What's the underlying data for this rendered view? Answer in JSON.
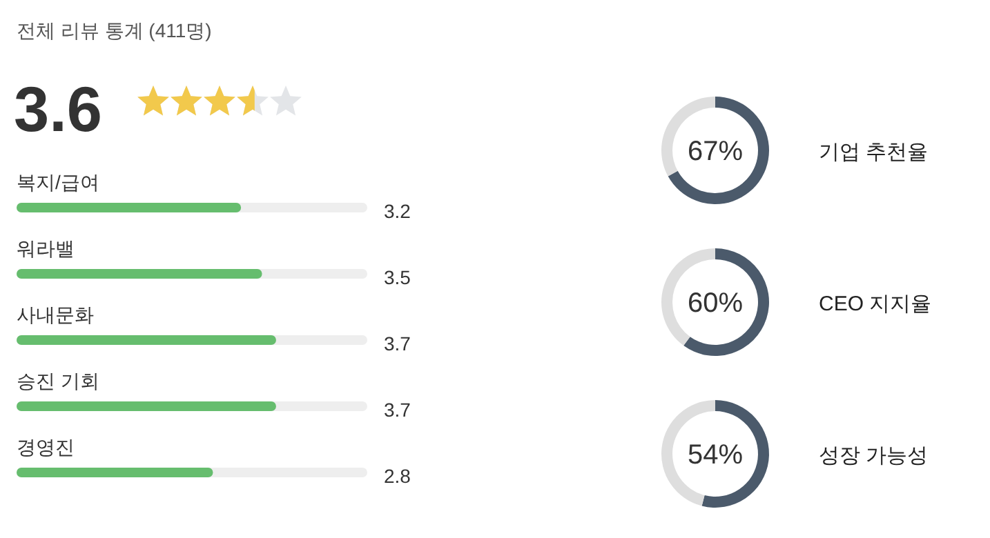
{
  "chart_data": [
    {
      "type": "other",
      "title": "전체 리뷰 통계 (411명)",
      "annotations": [
        "3.6"
      ]
    },
    {
      "type": "bar",
      "orientation": "horizontal",
      "categories": [
        "복지/급여",
        "워라밸",
        "사내문화",
        "승진 기회",
        "경영진"
      ],
      "values": [
        3.2,
        3.5,
        3.7,
        3.7,
        2.8
      ],
      "color": "#66bd6e",
      "xlim": [
        0,
        5
      ],
      "data_labels": true
    },
    {
      "type": "donut",
      "title": "기업 추천율",
      "categories": [
        null,
        null
      ],
      "values": [
        67,
        33
      ],
      "colors": [
        "#4b5a6b",
        "#dedede"
      ],
      "value_labels": [
        "67%",
        null
      ]
    },
    {
      "type": "donut",
      "title": "CEO 지지율",
      "categories": [
        null,
        null
      ],
      "values": [
        60,
        40
      ],
      "colors": [
        "#4b5a6b",
        "#dedede"
      ],
      "value_labels": [
        "60%",
        null
      ]
    },
    {
      "type": "donut",
      "title": "성장 가능성",
      "categories": [
        null,
        null
      ],
      "values": [
        54,
        46
      ],
      "colors": [
        "#4b5a6b",
        "#dedede"
      ],
      "value_labels": [
        "54%",
        null
      ]
    }
  ]
}
